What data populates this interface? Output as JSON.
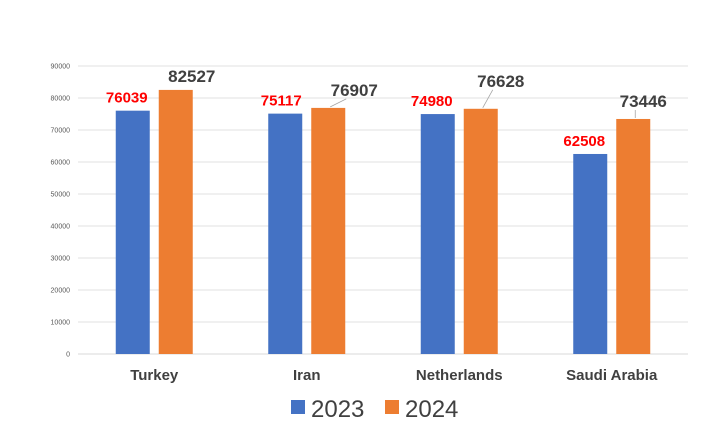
{
  "chart_data": {
    "type": "bar",
    "title": "",
    "xlabel": "",
    "ylabel": "",
    "categories": [
      "Turkey",
      "Iran",
      "Netherlands",
      "Saudi Arabia"
    ],
    "series": [
      {
        "name": "2023",
        "values": [
          76039,
          75117,
          74980,
          62508
        ],
        "color": "#4472c4",
        "label_color": "#ff0000"
      },
      {
        "name": "2024",
        "values": [
          82527,
          76907,
          76628,
          73446
        ],
        "color": "#ed7d31",
        "label_color": "#404040"
      }
    ],
    "ylim": [
      0,
      90000
    ],
    "yticks": [
      "0",
      "10000",
      "20000",
      "30000",
      "40000",
      "50000",
      "60000",
      "70000",
      "80000",
      "90000"
    ],
    "grid": true,
    "legend_position": "bottom"
  }
}
